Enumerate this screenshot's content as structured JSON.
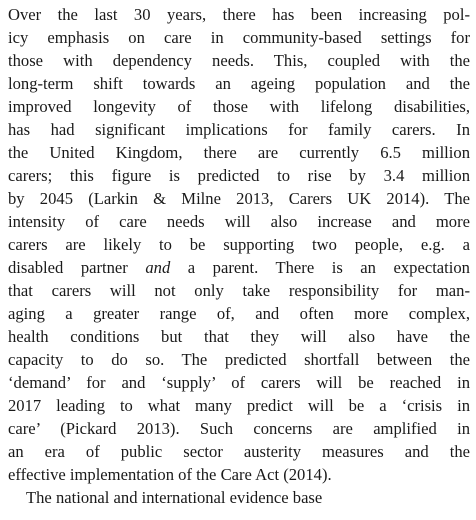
{
  "document": {
    "paragraphs": [
      {
        "lines": [
          "Over the last 30 years, there has been increasing pol-",
          "icy emphasis on care in community-based settings for",
          "those with dependency needs. This, coupled with the",
          "long-term shift towards an ageing population and the",
          "improved longevity of those with lifelong disabilities,",
          "has had significant implications for family carers. In",
          "the United Kingdom, there are currently 6.5 million",
          "carers; this figure is predicted to rise by 3.4 million",
          "by 2045 (Larkin & Milne 2013, Carers UK 2014). The",
          "intensity of care needs will also increase and more",
          "carers are likely to be supporting two people, e.g. a",
          [
            "disabled partner ",
            "and",
            " a parent. There is an expectation"
          ],
          "that carers will not only take responsibility for man-",
          "aging a greater range of, and often more complex,",
          "health conditions but that they will also have the",
          "capacity to do so. The predicted shortfall between the",
          "‘demand’ for and ‘supply’ of carers will be reached in",
          "2017 leading to what many predict will be a ‘crisis in",
          "care’ (Pickard 2013). Such concerns are amplified in",
          "an era of public sector austerity measures and the",
          "effective implementation of the Care Act (2014)."
        ]
      },
      {
        "lines": [
          "The national and international evidence base"
        ]
      }
    ]
  }
}
